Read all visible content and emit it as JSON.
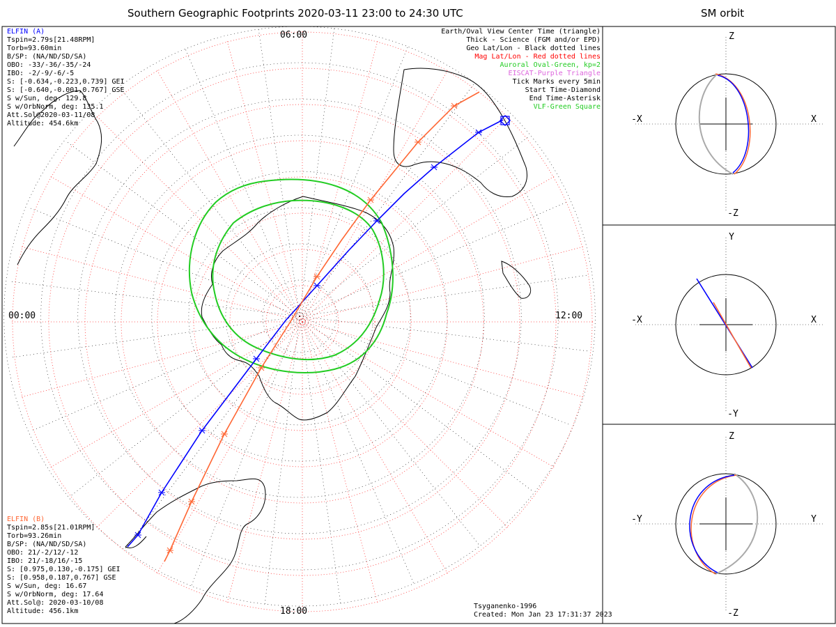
{
  "main_title": "Southern Geographic Footprints 2020-03-11 23:00 to 24:30 UTC",
  "sm_title": "SM orbit",
  "time_labels": {
    "top": "06:00",
    "left": "00:00",
    "right": "12:00",
    "bottom": "18:00"
  },
  "elfin_a": {
    "color": "#0000ff",
    "lines": [
      "ELFIN (A)",
      "Tspin=2.79s[21.48RPM]",
      "Torb=93.60min",
      "B/SP: (NA/ND/SD/SA)",
      "OBO: -33/-36/-35/-24",
      "IBO: -2/-9/-6/-5",
      "S: [-0.634,-0.223,0.739] GEI",
      "S: [-0.640,-0.001,0.767] GSE",
      "S w/Sun, deg: 129.8",
      "S w/OrbNorm, deg: 135.1",
      "Att.Sol@2020-03-11/08",
      "Altitude: 454.6km"
    ]
  },
  "elfin_b": {
    "color": "#ff6633",
    "lines": [
      "ELFIN (B)",
      "Tspin=2.85s[21.01RPM]",
      "Torb=93.26min",
      "B/SP: (NA/ND/SD/SA)",
      "OBO: 21/-2/12/-12",
      "IBO: 21/-18/16/-15",
      "S: [0.975,0.130,-0.175] GEI",
      "S: [0.958,0.187,0.767] GSE",
      "S w/Sun, deg: 16.67",
      "S w/OrbNorm, deg: 17.64",
      "Att.Sol@: 2020-03-10/08",
      "Altitude: 456.1km"
    ]
  },
  "legend": [
    {
      "text": "Earth/Oval View Center Time (triangle)",
      "color": "#000000"
    },
    {
      "text": "Thick - Science (FGM and/or EPD)",
      "color": "#000000"
    },
    {
      "text": "Geo Lat/Lon - Black dotted lines",
      "color": "#000000"
    },
    {
      "text": "Mag Lat/Lon - Red dotted lines",
      "color": "#ff0000"
    },
    {
      "text": "Auroral Oval-Green, kp=2",
      "color": "#22cc22"
    },
    {
      "text": "EISCAT-Purple Triangle",
      "color": "#dd66dd"
    },
    {
      "text": "Tick Marks every 5min",
      "color": "#000000"
    },
    {
      "text": "Start Time-Diamond",
      "color": "#000000"
    },
    {
      "text": "End Time-Asterisk",
      "color": "#000000"
    },
    {
      "text": "VLF-Green Square",
      "color": "#22cc22"
    }
  ],
  "credits": [
    "Tsyganenko-1996",
    "Created: Mon Jan 23 17:31:37 2023"
  ],
  "sm_panels": [
    {
      "name": "xz",
      "top": "Z",
      "bottom": "-Z",
      "left": "-X",
      "right": "X"
    },
    {
      "name": "xy",
      "top": "Y",
      "bottom": "-Y",
      "left": "-X",
      "right": "X"
    },
    {
      "name": "yz",
      "top": "Z",
      "bottom": "-Z",
      "left": "-Y",
      "right": "Y"
    }
  ],
  "chart_data": {
    "type": "polar-map",
    "series": [
      {
        "name": "ELFIN (A)",
        "color": "#0000ff"
      },
      {
        "name": "ELFIN (B)",
        "color": "#ff6633"
      }
    ]
  }
}
